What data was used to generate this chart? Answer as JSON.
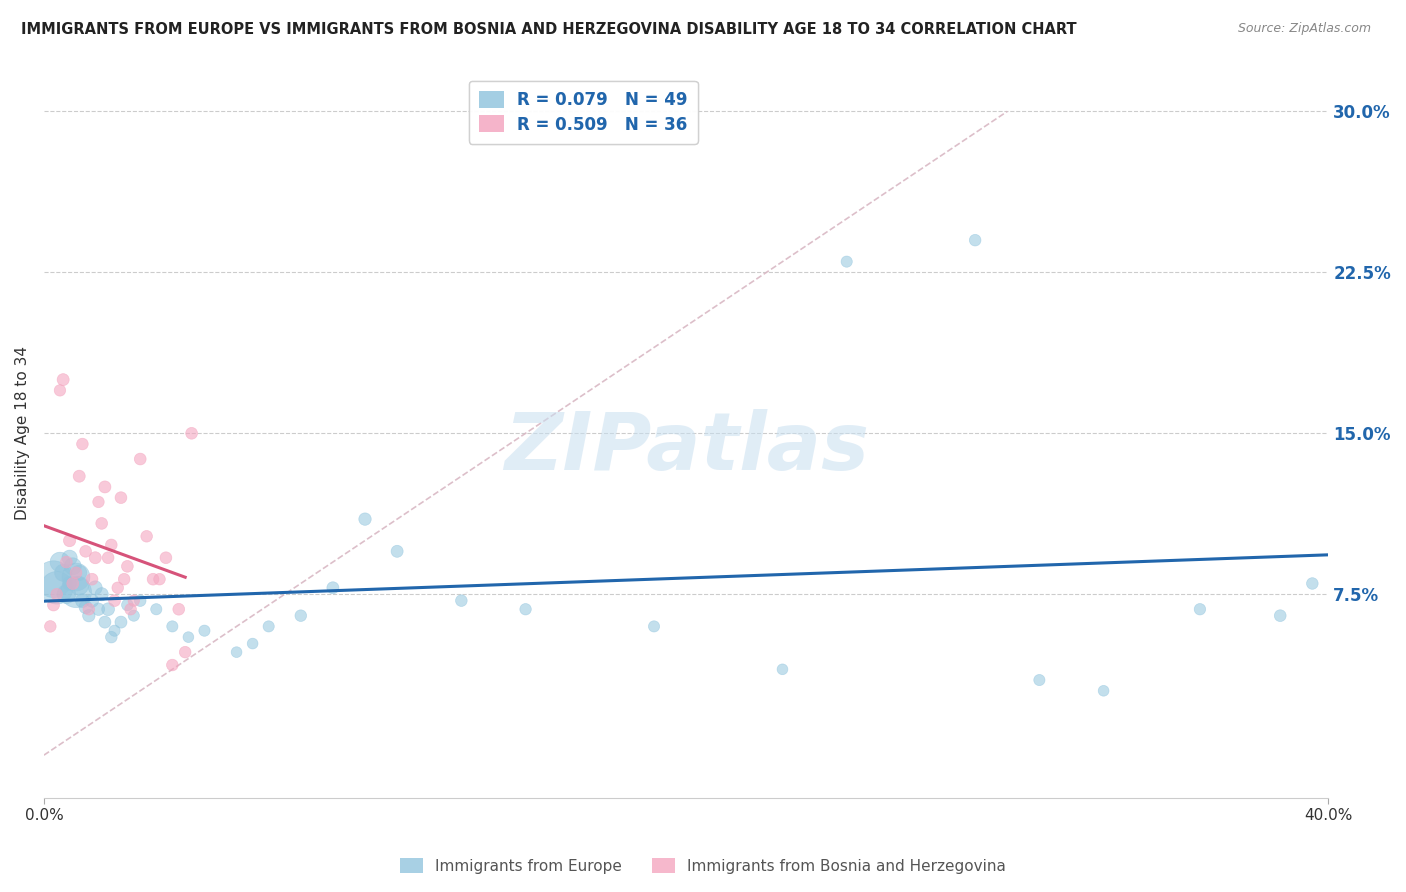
{
  "title": "IMMIGRANTS FROM EUROPE VS IMMIGRANTS FROM BOSNIA AND HERZEGOVINA DISABILITY AGE 18 TO 34 CORRELATION CHART",
  "source": "Source: ZipAtlas.com",
  "ylabel": "Disability Age 18 to 34",
  "xlim": [
    0.0,
    0.4
  ],
  "ylim": [
    -0.02,
    0.32
  ],
  "yticks": [
    0.075,
    0.15,
    0.225,
    0.3
  ],
  "ytick_labels": [
    "7.5%",
    "15.0%",
    "22.5%",
    "30.0%"
  ],
  "xticks": [
    0.0,
    0.4
  ],
  "xtick_labels": [
    "0.0%",
    "40.0%"
  ],
  "legend_labels": [
    "Immigrants from Europe",
    "Immigrants from Bosnia and Herzegovina"
  ],
  "R_europe": 0.079,
  "N_europe": 49,
  "R_bosnia": 0.509,
  "N_bosnia": 36,
  "blue_color": "#92c5de",
  "pink_color": "#f4a6c0",
  "blue_line_color": "#2166ac",
  "pink_line_color": "#d6537a",
  "diag_line_color": "#d9b8c4",
  "europe_x": [
    0.003,
    0.004,
    0.005,
    0.006,
    0.007,
    0.008,
    0.008,
    0.009,
    0.01,
    0.01,
    0.011,
    0.011,
    0.012,
    0.013,
    0.014,
    0.015,
    0.016,
    0.017,
    0.018,
    0.019,
    0.02,
    0.021,
    0.022,
    0.024,
    0.026,
    0.028,
    0.03,
    0.035,
    0.04,
    0.045,
    0.05,
    0.06,
    0.065,
    0.07,
    0.08,
    0.09,
    0.1,
    0.11,
    0.13,
    0.15,
    0.19,
    0.23,
    0.25,
    0.29,
    0.31,
    0.33,
    0.36,
    0.385,
    0.395
  ],
  "europe_y": [
    0.082,
    0.078,
    0.09,
    0.085,
    0.075,
    0.092,
    0.08,
    0.088,
    0.076,
    0.083,
    0.079,
    0.085,
    0.072,
    0.069,
    0.065,
    0.072,
    0.078,
    0.068,
    0.075,
    0.062,
    0.068,
    0.055,
    0.058,
    0.062,
    0.07,
    0.065,
    0.072,
    0.068,
    0.06,
    0.055,
    0.058,
    0.048,
    0.052,
    0.06,
    0.065,
    0.078,
    0.11,
    0.095,
    0.072,
    0.068,
    0.06,
    0.04,
    0.23,
    0.24,
    0.035,
    0.03,
    0.068,
    0.065,
    0.08
  ],
  "europe_size": [
    700,
    550,
    200,
    150,
    180,
    120,
    100,
    150,
    500,
    400,
    180,
    120,
    100,
    90,
    80,
    90,
    100,
    80,
    90,
    75,
    85,
    70,
    65,
    75,
    70,
    65,
    70,
    65,
    65,
    60,
    65,
    60,
    60,
    65,
    70,
    75,
    80,
    75,
    70,
    68,
    65,
    60,
    65,
    70,
    65,
    60,
    68,
    72,
    70
  ],
  "bosnia_x": [
    0.002,
    0.003,
    0.004,
    0.005,
    0.006,
    0.007,
    0.008,
    0.009,
    0.01,
    0.011,
    0.012,
    0.013,
    0.014,
    0.015,
    0.016,
    0.017,
    0.018,
    0.019,
    0.02,
    0.021,
    0.022,
    0.023,
    0.024,
    0.025,
    0.026,
    0.027,
    0.028,
    0.03,
    0.032,
    0.034,
    0.036,
    0.038,
    0.04,
    0.042,
    0.044,
    0.046
  ],
  "bosnia_y": [
    0.06,
    0.07,
    0.075,
    0.17,
    0.175,
    0.09,
    0.1,
    0.08,
    0.085,
    0.13,
    0.145,
    0.095,
    0.068,
    0.082,
    0.092,
    0.118,
    0.108,
    0.125,
    0.092,
    0.098,
    0.072,
    0.078,
    0.12,
    0.082,
    0.088,
    0.068,
    0.072,
    0.138,
    0.102,
    0.082,
    0.082,
    0.092,
    0.042,
    0.068,
    0.048,
    0.15
  ],
  "bosnia_size": [
    70,
    75,
    70,
    68,
    75,
    72,
    78,
    75,
    72,
    75,
    70,
    72,
    70,
    72,
    75,
    68,
    72,
    75,
    72,
    70,
    72,
    70,
    72,
    70,
    72,
    70,
    68,
    72,
    70,
    72,
    70,
    72,
    70,
    72,
    70,
    72
  ]
}
